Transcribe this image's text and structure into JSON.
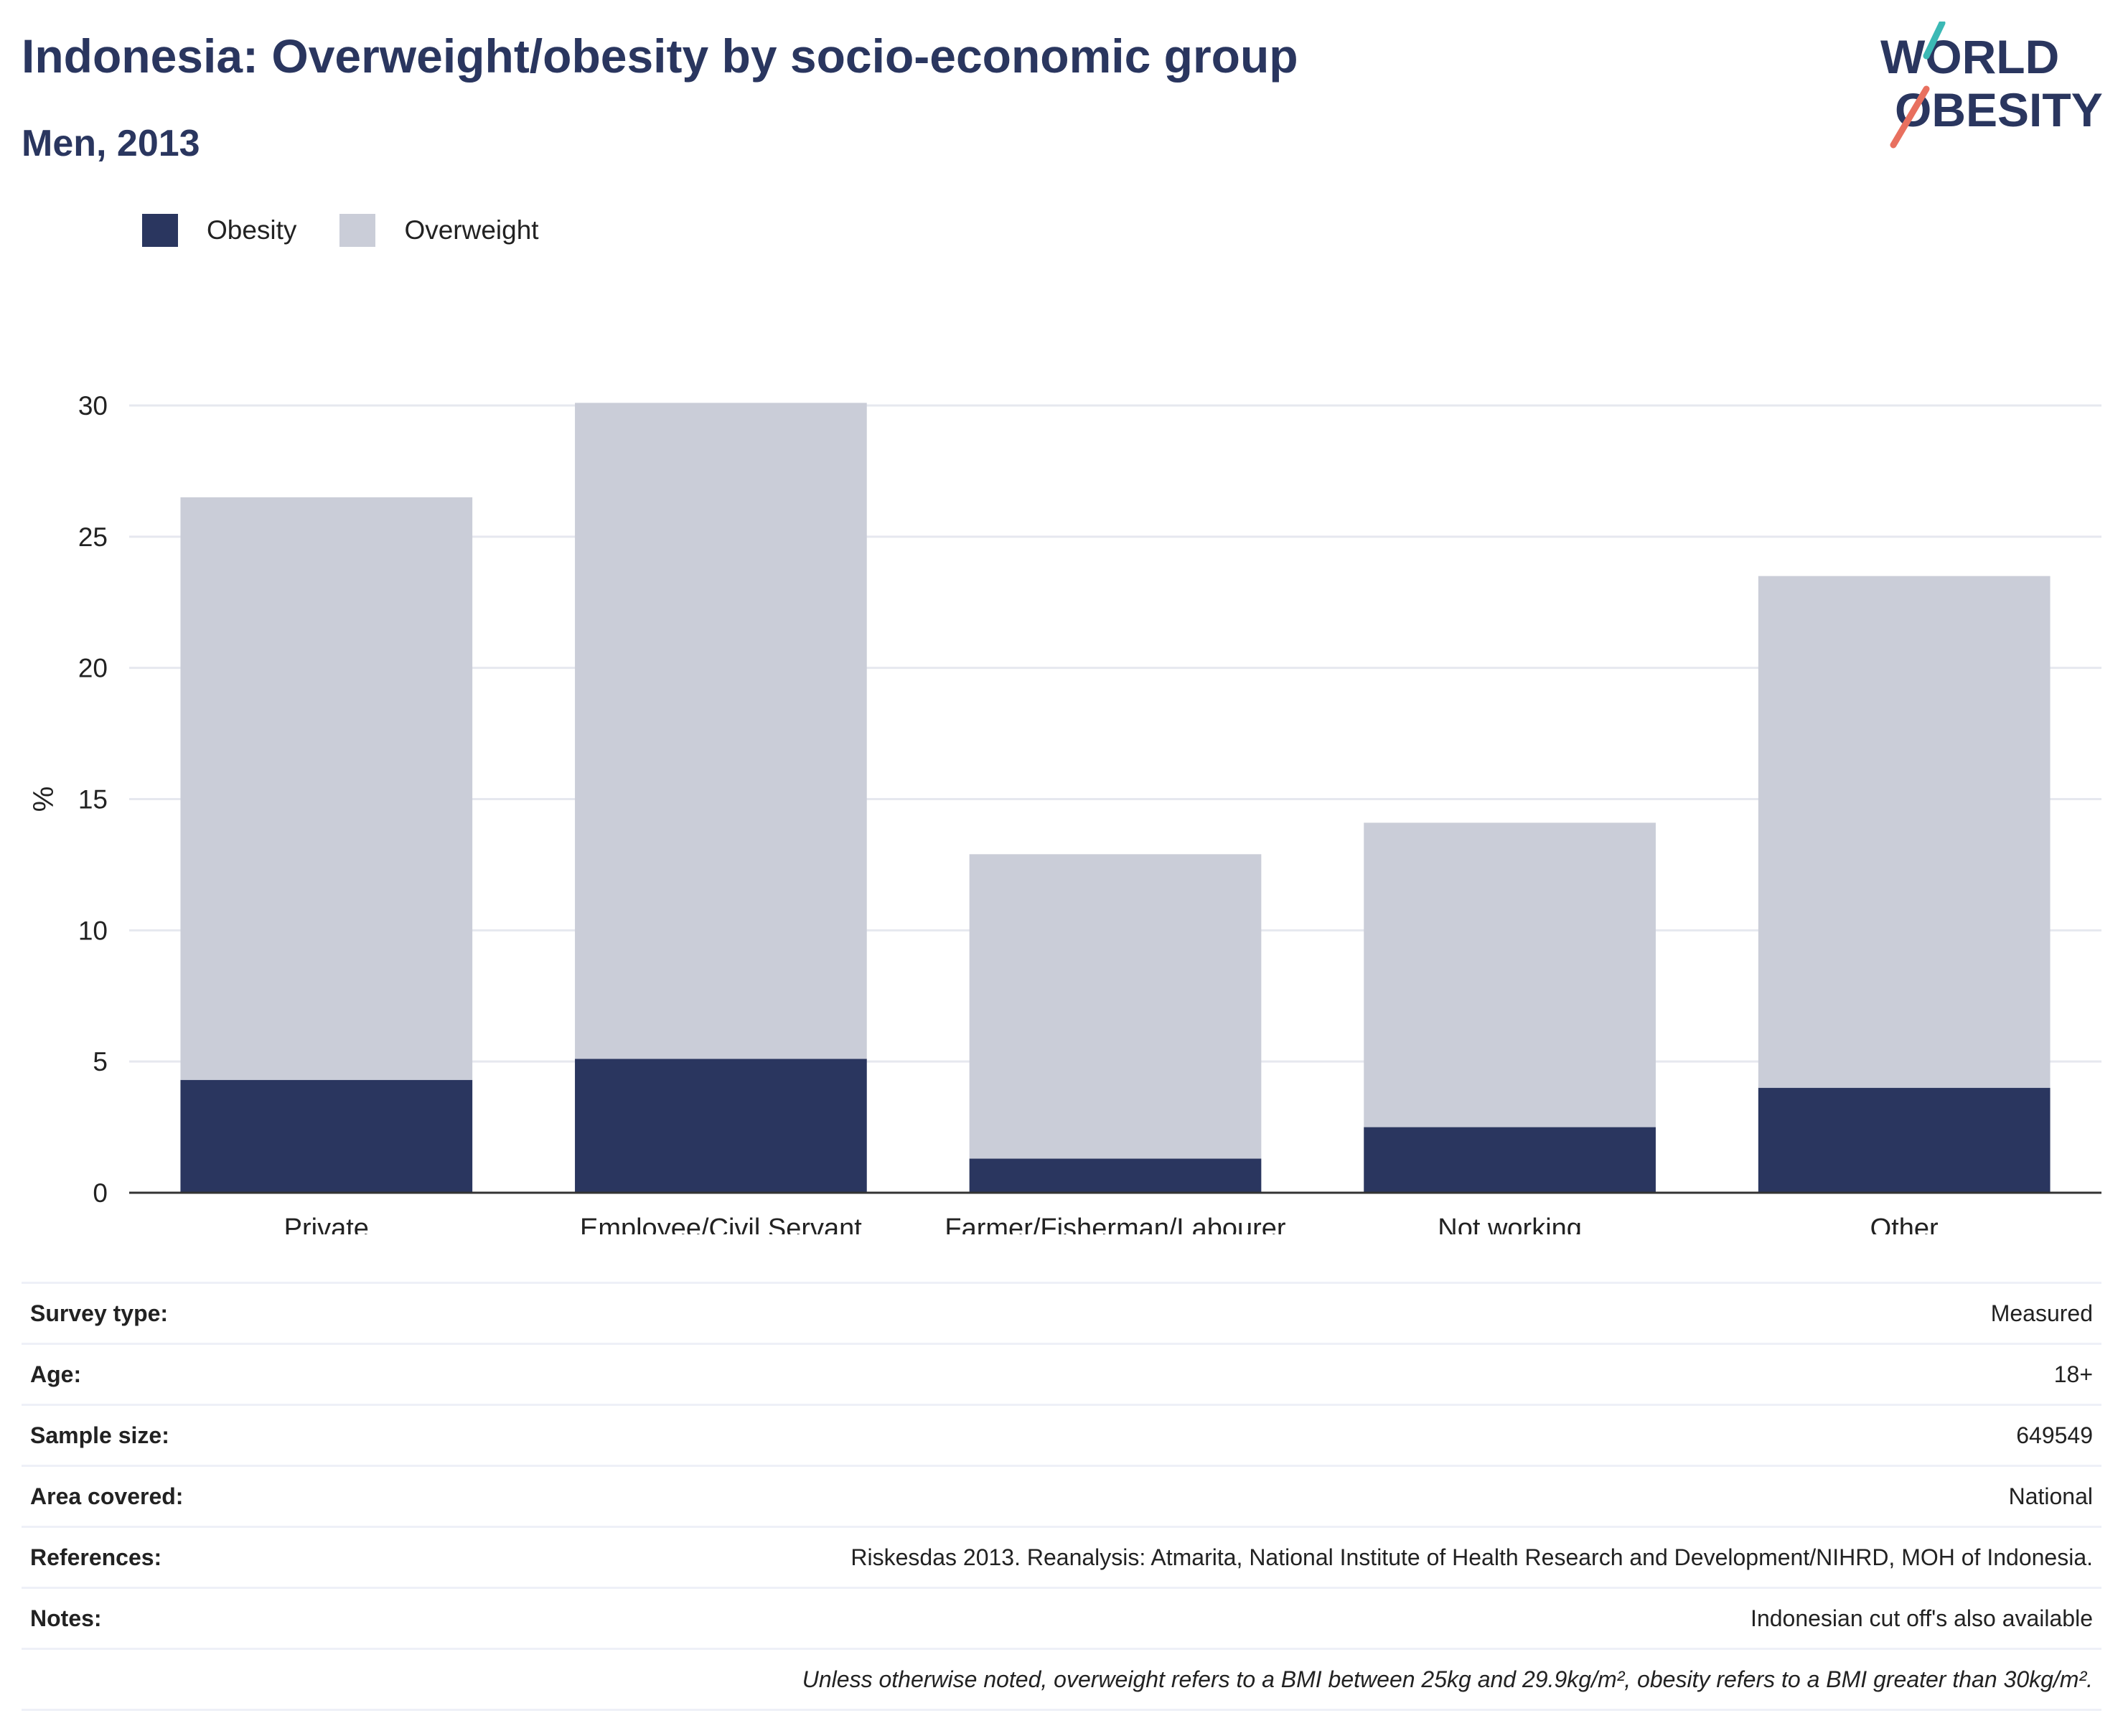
{
  "header": {
    "title": "Indonesia: Overweight/obesity by socio-economic group",
    "subtitle": "Men, 2013"
  },
  "logo": {
    "line1": "WORLD",
    "line2": "OBESITY",
    "accent_teal": "#3bb9b5",
    "accent_coral": "#e8705f"
  },
  "legend": [
    {
      "name": "Obesity",
      "color": "#2a365f"
    },
    {
      "name": "Overweight",
      "color": "#cacdd8"
    }
  ],
  "chart_data": {
    "type": "bar",
    "stacked": true,
    "categories": [
      "Private",
      "Employee/Civil Servant",
      "Farmer/Fisherman/Labourer",
      "Not working",
      "Other"
    ],
    "series": [
      {
        "name": "Obesity",
        "color": "#2a365f",
        "values": [
          4.3,
          5.1,
          1.3,
          2.5,
          4.0
        ]
      },
      {
        "name": "Overweight",
        "color": "#cacdd8",
        "values": [
          22.2,
          25.0,
          11.6,
          11.6,
          19.5
        ]
      }
    ],
    "ylabel": "%",
    "ylim": [
      0,
      30
    ],
    "yticks": [
      "0",
      "5",
      "10",
      "15",
      "20",
      "25",
      "30"
    ],
    "grid": true,
    "legend_position": "top-left"
  },
  "meta": {
    "rows": [
      {
        "label": "Survey type:",
        "value": "Measured"
      },
      {
        "label": "Age:",
        "value": "18+"
      },
      {
        "label": "Sample size:",
        "value": "649549"
      },
      {
        "label": "Area covered:",
        "value": "National"
      },
      {
        "label": "References:",
        "value": "Riskesdas 2013. Reanalysis: Atmarita, National Institute of Health Research and Development/NIHRD, MOH of Indonesia."
      },
      {
        "label": "Notes:",
        "value": "Indonesian cut off's also available"
      }
    ],
    "footnote": "Unless otherwise noted, overweight refers to a BMI between 25kg and 29.9kg/m², obesity refers to a BMI greater than 30kg/m²."
  }
}
